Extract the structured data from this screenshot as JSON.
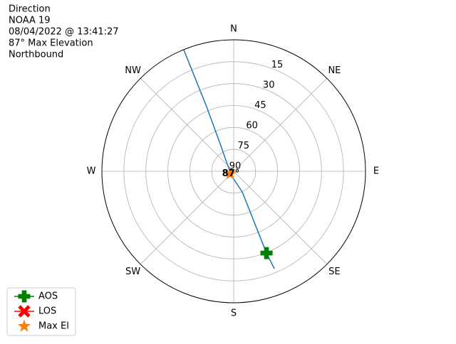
{
  "chart_data": {
    "type": "polar",
    "title_lines": [
      "Direction",
      "NOAA 19",
      "08/04/2022 @ 13:41:27",
      "87° Max Elevation",
      "Northbound"
    ],
    "thetaticks": [
      {
        "value": 0,
        "label": "N"
      },
      {
        "value": 45,
        "label": "NE"
      },
      {
        "value": 90,
        "label": "E"
      },
      {
        "value": 135,
        "label": "SE"
      },
      {
        "value": 180,
        "label": "S"
      },
      {
        "value": 225,
        "label": "SW"
      },
      {
        "value": 270,
        "label": "W"
      },
      {
        "value": 315,
        "label": "NW"
      }
    ],
    "rlim": [
      90,
      0
    ],
    "rticks": [
      90,
      75,
      60,
      45,
      30,
      15
    ],
    "grid": true,
    "series": [
      {
        "color": "#1f77b4",
        "azimuth": [
          157.4,
          158.2,
          157.5,
          194,
          322,
          333.4,
          337.3,
          337.7
        ],
        "elevation": [
          17.8,
          29.7,
          74.7,
          86,
          82,
          70.4,
          42,
          0
        ]
      }
    ],
    "markers": [
      {
        "name": "AOS",
        "color": "green",
        "shape": "plus",
        "azimuth": 158.2,
        "elevation": 29.7
      },
      {
        "name": "LOS",
        "color": "red",
        "shape": "x"
      },
      {
        "name": "Max El",
        "color": "#ff7f0e",
        "shape": "star",
        "azimuth": 234.5,
        "elevation": 87,
        "value_label": "87°"
      }
    ],
    "legend": "lower left"
  }
}
